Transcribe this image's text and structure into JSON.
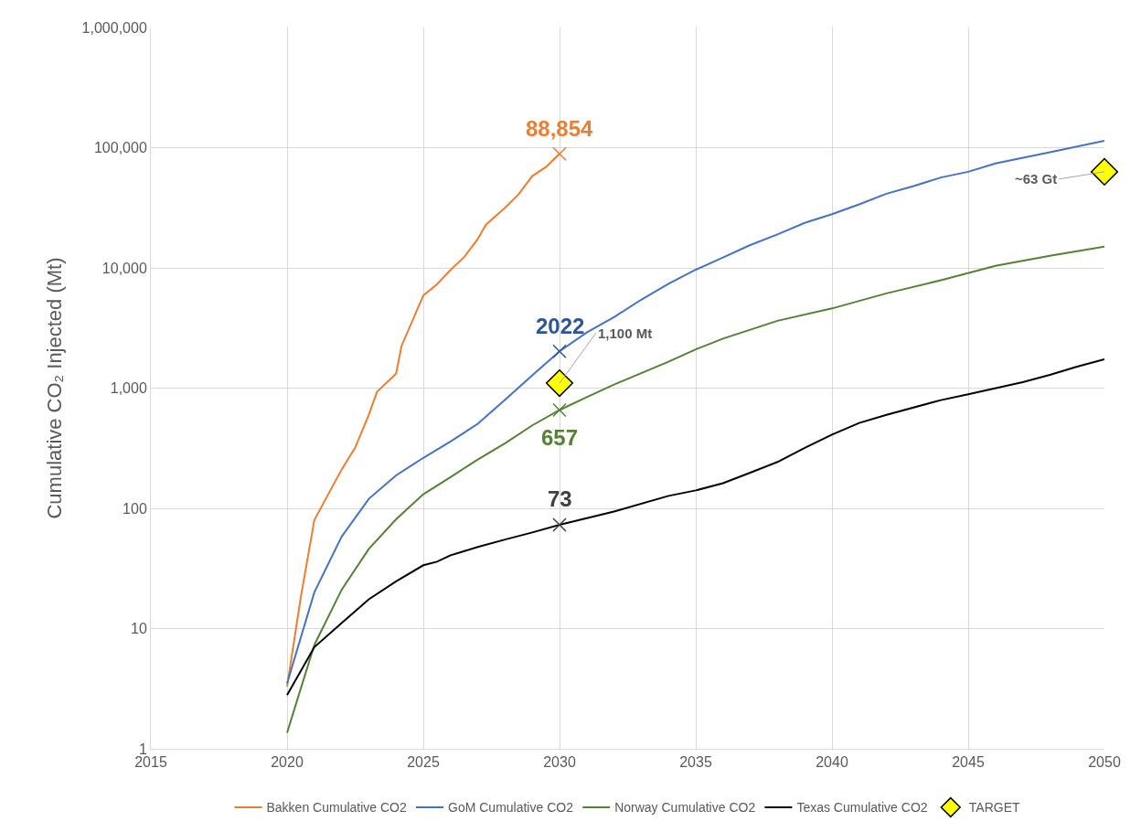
{
  "chart_data": {
    "type": "line",
    "ylabel": "Cumulative CO₂ Injected (Mt)",
    "xlim": [
      2015,
      2050
    ],
    "xticks": [
      2015,
      2020,
      2025,
      2030,
      2035,
      2040,
      2045,
      2050
    ],
    "log": "y",
    "ylim": [
      1,
      1000000
    ],
    "yticks": [
      {
        "value": 1,
        "label": "1"
      },
      {
        "value": 10,
        "label": "10"
      },
      {
        "value": 100,
        "label": "100"
      },
      {
        "value": 1000,
        "label": "1,000"
      },
      {
        "value": 10000,
        "label": "10,000"
      },
      {
        "value": 100000,
        "label": "100,000"
      },
      {
        "value": 1000000,
        "label": "1,000,000"
      }
    ],
    "grid": true,
    "legend": "bottom",
    "series": [
      {
        "name": "Bakken Cumulative CO2",
        "color": "#ed7d31",
        "marker": "none",
        "x": [
          2020,
          2020.5,
          2021,
          2022,
          2022.5,
          2023,
          2023.3,
          2024,
          2024.2,
          2025,
          2025.5,
          2026,
          2026.5,
          2027,
          2027.3,
          2028,
          2028.5,
          2029,
          2029.5,
          2030
        ],
        "values": [
          3.3,
          18,
          80,
          210,
          320,
          600,
          930,
          1320,
          2240,
          5900,
          7300,
          9600,
          12300,
          17400,
          22900,
          31600,
          41000,
          58000,
          69000,
          88854
        ]
      },
      {
        "name": "GoM Cumulative CO2",
        "color": "#4472c4",
        "marker": "none",
        "x": [
          2020,
          2021,
          2022,
          2023,
          2024,
          2025,
          2026,
          2027,
          2028,
          2029,
          2030,
          2031,
          2032,
          2033,
          2034,
          2035,
          2036,
          2037,
          2038,
          2039,
          2040,
          2041,
          2042,
          2043,
          2044,
          2045,
          2046,
          2048,
          2050
        ],
        "values": [
          3.5,
          20,
          58,
          120,
          188,
          263,
          360,
          505,
          800,
          1280,
          2022,
          2900,
          3890,
          5440,
          7380,
          9660,
          12200,
          15500,
          19000,
          23700,
          28000,
          33800,
          41400,
          48000,
          56500,
          63000,
          74000,
          91500,
          114000
        ]
      },
      {
        "name": "Norway Cumulative CO2",
        "color": "#548235",
        "marker": "none",
        "x": [
          2020,
          2021,
          2022,
          2023,
          2024,
          2025,
          2026,
          2027,
          2028,
          2029,
          2030,
          2031,
          2032,
          2034,
          2035,
          2036,
          2038,
          2040,
          2042,
          2044,
          2046,
          2048,
          2050
        ],
        "values": [
          1.36,
          7.3,
          21,
          46,
          81,
          131,
          182,
          255,
          348,
          490,
          657,
          840,
          1070,
          1660,
          2100,
          2580,
          3630,
          4600,
          6140,
          7900,
          10400,
          12600,
          15000
        ]
      },
      {
        "name": "Texas Cumulative CO2",
        "color": "#000000",
        "marker": "none",
        "x": [
          2020,
          2021,
          2022,
          2023,
          2024,
          2025,
          2025.5,
          2026,
          2027,
          2028,
          2029,
          2030,
          2032,
          2034,
          2035,
          2036,
          2037,
          2038,
          2039,
          2040,
          2041,
          2042,
          2044,
          2045,
          2047,
          2048,
          2049,
          2050
        ],
        "values": [
          2.8,
          7.0,
          11.1,
          17.5,
          24.7,
          33.6,
          36,
          40.7,
          47.7,
          55,
          63,
          73,
          94,
          127,
          141,
          162,
          198,
          243,
          318,
          410,
          513,
          600,
          795,
          890,
          1120,
          1290,
          1510,
          1740
        ]
      },
      {
        "type": "scatter",
        "color": "#ed7d31",
        "marker": "cross",
        "x": [
          2030
        ],
        "values": [
          88854
        ],
        "value_labels": [
          "88,854"
        ]
      },
      {
        "type": "scatter",
        "color": "#2f5597",
        "marker": "cross",
        "x": [
          2030
        ],
        "values": [
          2022
        ],
        "value_labels": [
          "2022"
        ]
      },
      {
        "type": "scatter",
        "color": "#548235",
        "marker": "cross",
        "x": [
          2030
        ],
        "values": [
          657
        ],
        "value_labels": [
          "657"
        ]
      },
      {
        "type": "scatter",
        "color": "#404040",
        "marker": "cross",
        "x": [
          2030
        ],
        "values": [
          73
        ],
        "value_labels": [
          "73"
        ]
      },
      {
        "type": "scatter",
        "name": "TARGET",
        "color": "#ffff00",
        "marker": "diamond",
        "x": [
          2030,
          2050
        ],
        "values": [
          1100,
          63000
        ]
      }
    ],
    "annotations": [
      {
        "text": "1,100 Mt",
        "x": 2030,
        "y": 1100
      },
      {
        "text": "~63 Gt",
        "x": 2050,
        "y": 63000
      }
    ]
  }
}
